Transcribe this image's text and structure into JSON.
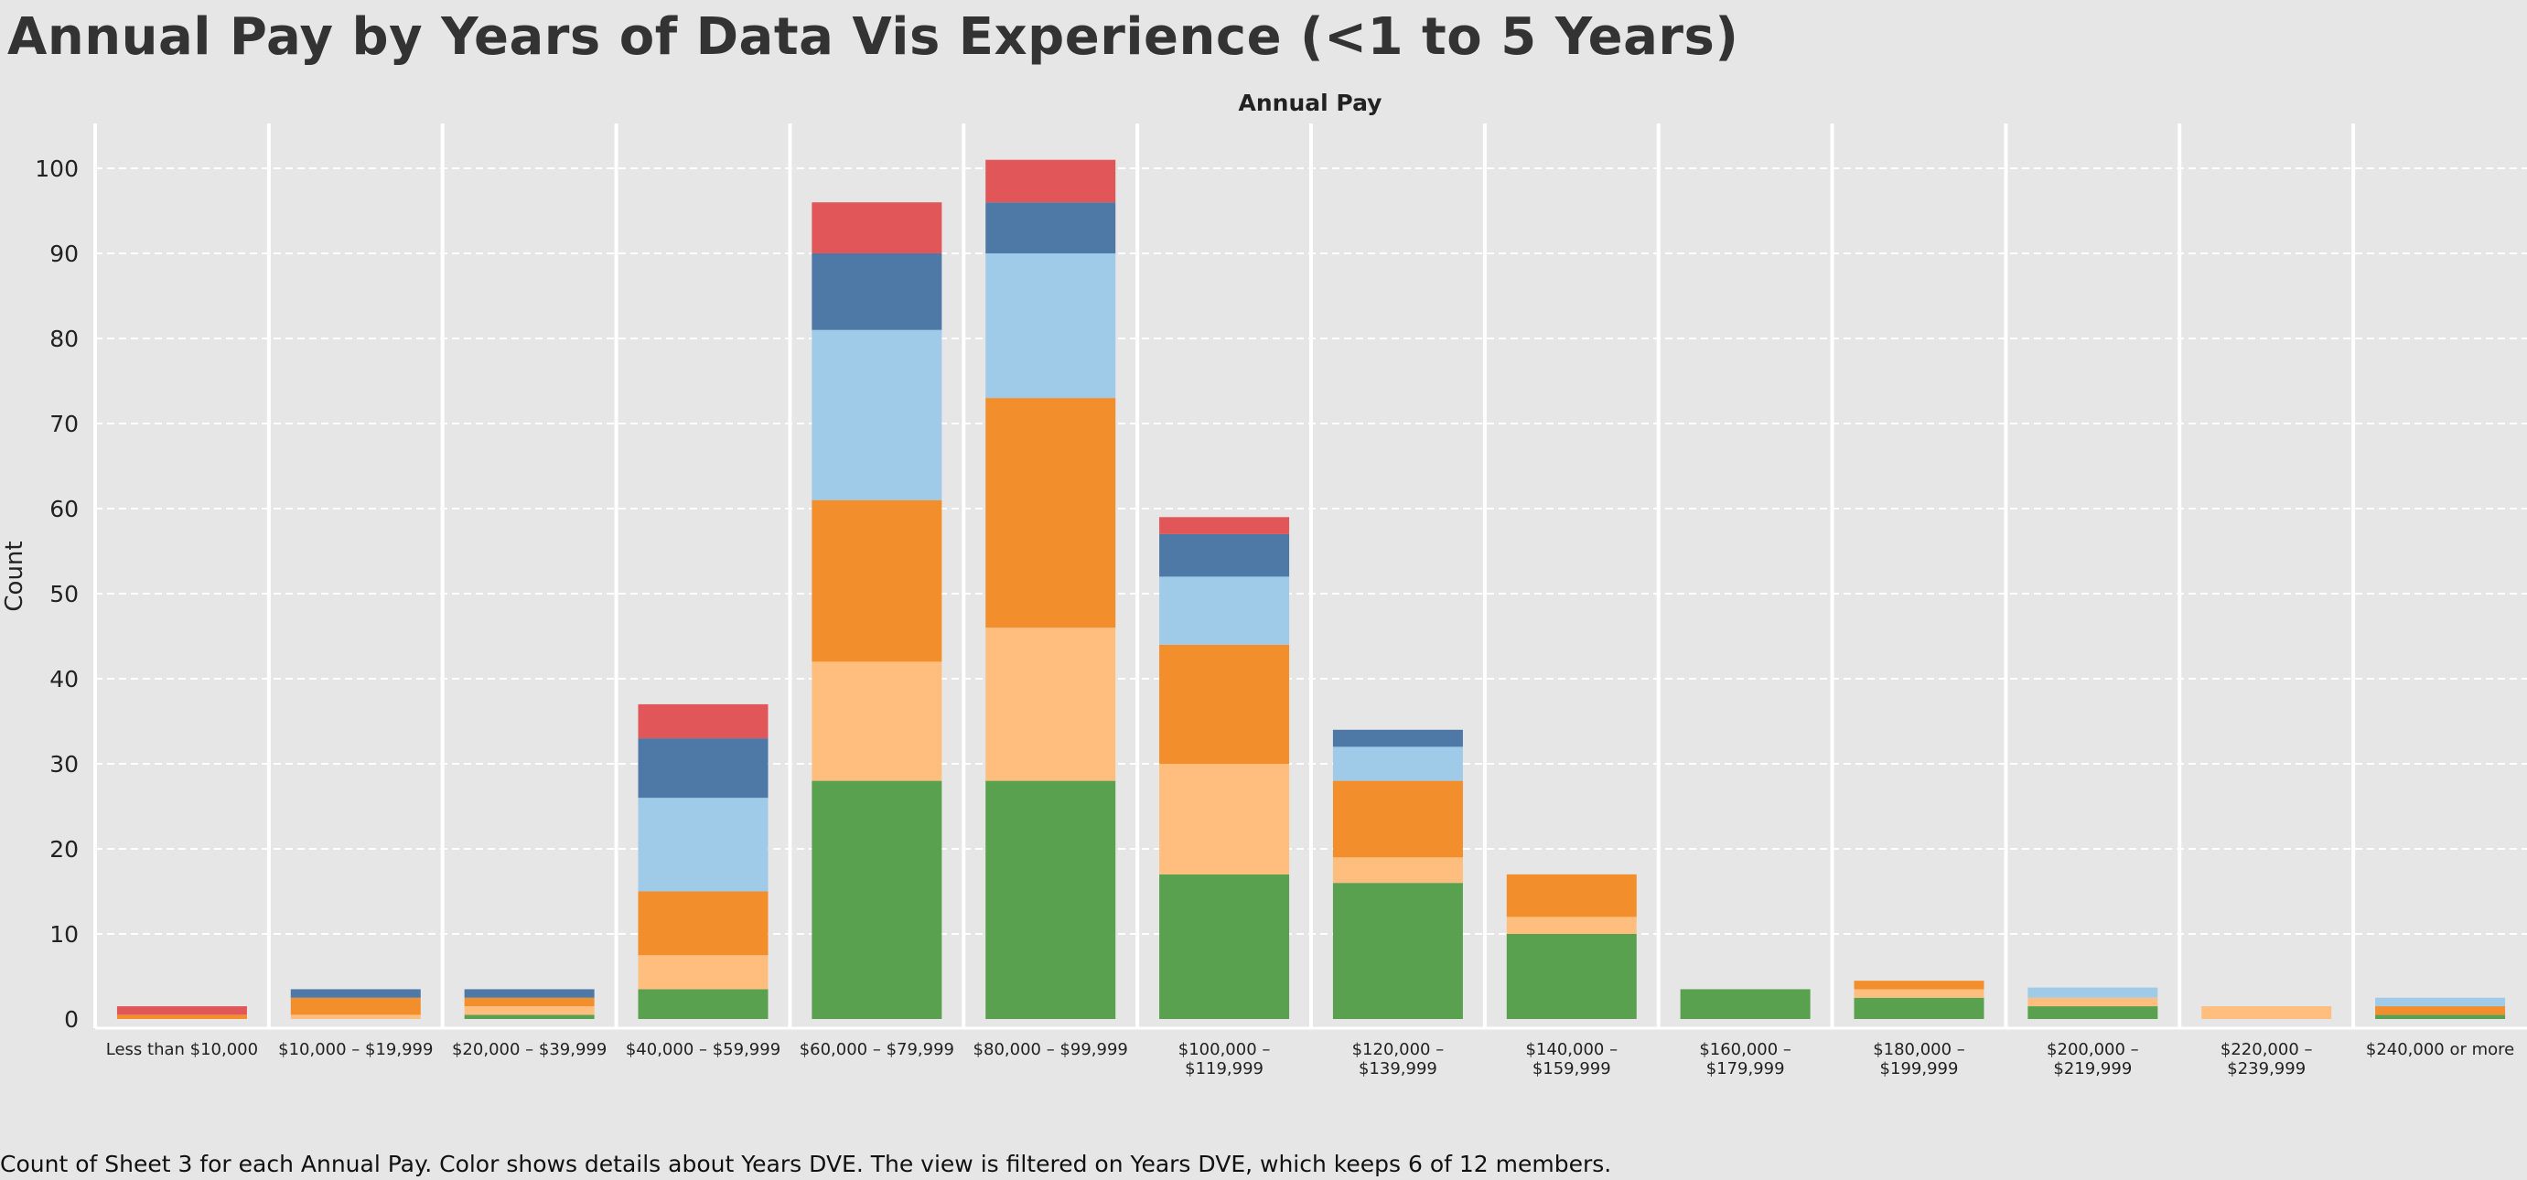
{
  "chart_data": {
    "type": "bar",
    "stacked": true,
    "title": "Annual Pay by Years of Data Vis Experience (<1 to 5 Years)",
    "column_header": "Annual Pay",
    "ylabel": "Count",
    "ylim": [
      0,
      107
    ],
    "yticks": [
      0,
      10,
      20,
      30,
      40,
      50,
      60,
      70,
      80,
      90,
      100
    ],
    "grid": true,
    "caption": "Count of Sheet 3 for each Annual Pay.  Color shows details about Years DVE. The view is filtered on Years DVE, which keeps 6 of 12 members.",
    "categories": [
      [
        "Less than $10,000"
      ],
      [
        "$10,000 – $19,999"
      ],
      [
        "$20,000 – $39,999"
      ],
      [
        "$40,000 – $59,999"
      ],
      [
        "$60,000 – $79,999"
      ],
      [
        "$80,000 – $99,999"
      ],
      [
        "$100,000 –",
        "$119,999"
      ],
      [
        "$120,000 –",
        "$139,999"
      ],
      [
        "$140,000 –",
        "$159,999"
      ],
      [
        "$160,000 –",
        "$179,999"
      ],
      [
        "$180,000 –",
        "$199,999"
      ],
      [
        "$200,000 –",
        "$219,999"
      ],
      [
        "$220,000 –",
        "$239,999"
      ],
      [
        "$240,000 or more"
      ]
    ],
    "series": [
      {
        "color": "#59a14f",
        "values": [
          0,
          0,
          0.5,
          3.5,
          28,
          28,
          17,
          16,
          10,
          3.5,
          2.5,
          1.5,
          0,
          0.5
        ]
      },
      {
        "color": "#ffbe7d",
        "values": [
          0,
          0.5,
          1,
          4,
          14,
          18,
          13,
          3,
          2,
          0,
          1,
          1,
          1.5,
          0
        ]
      },
      {
        "color": "#f28e2b",
        "values": [
          0.5,
          2,
          1,
          7.5,
          19,
          27,
          14,
          9,
          5,
          0,
          1,
          0,
          0,
          1
        ]
      },
      {
        "color": "#a0cbe8",
        "values": [
          0,
          0,
          0,
          11,
          20,
          17,
          8,
          4,
          0,
          0,
          0,
          1.2,
          0,
          1
        ]
      },
      {
        "color": "#4e79a7",
        "values": [
          0,
          1,
          1,
          7,
          9,
          6,
          5,
          2,
          0,
          0,
          0,
          0,
          0,
          0
        ]
      },
      {
        "color": "#e15759",
        "values": [
          1,
          0,
          0,
          4,
          6,
          5,
          2,
          0,
          0,
          0,
          0,
          0,
          0,
          0
        ]
      }
    ]
  }
}
